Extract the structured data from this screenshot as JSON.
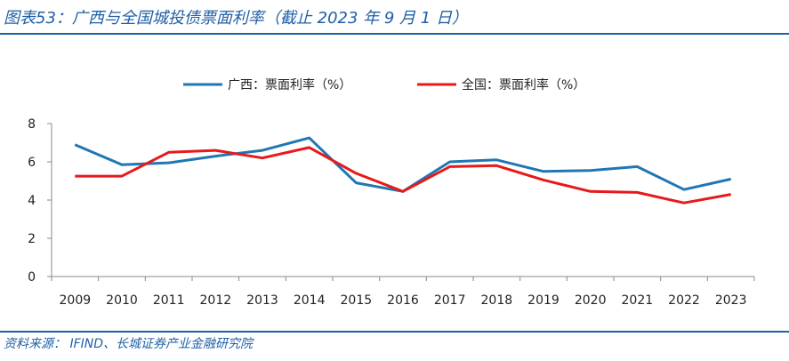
{
  "header": {
    "title": "图表53：广西与全国城投债票面利率（截止 2023 年 9 月 1 日）"
  },
  "footer": {
    "source": "资料来源： IFIND、长城证券产业金融研究院"
  },
  "colors": {
    "accent": "#1f5fa6",
    "series_guangxi": "#1f77b4",
    "series_national": "#e8191a"
  },
  "chart_data": {
    "type": "line",
    "title": "",
    "xlabel": "",
    "ylabel": "",
    "categories": [
      "2009",
      "2010",
      "2011",
      "2012",
      "2013",
      "2014",
      "2015",
      "2016",
      "2017",
      "2018",
      "2019",
      "2020",
      "2021",
      "2022",
      "2023"
    ],
    "ylim": [
      0,
      8
    ],
    "yticks": [
      0,
      2,
      4,
      6,
      8
    ],
    "grid": false,
    "legend_position": "top-center",
    "series": [
      {
        "name": "广西：票面利率（%）",
        "color": "#1f77b4",
        "values": [
          6.9,
          5.85,
          5.95,
          6.3,
          6.6,
          7.25,
          4.9,
          4.45,
          6.0,
          6.1,
          5.5,
          5.55,
          5.75,
          4.55,
          5.1
        ]
      },
      {
        "name": "全国：票面利率（%）",
        "color": "#e8191a",
        "values": [
          5.25,
          5.25,
          6.5,
          6.6,
          6.2,
          6.75,
          5.4,
          4.45,
          5.75,
          5.8,
          5.05,
          4.45,
          4.4,
          3.85,
          4.3
        ]
      }
    ]
  }
}
